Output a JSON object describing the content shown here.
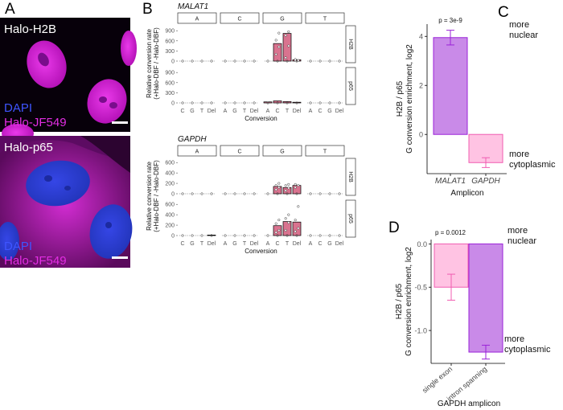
{
  "figure": {
    "panel_labels": [
      "A",
      "B",
      "C",
      "D"
    ],
    "micrographs": [
      {
        "title": "Halo-H2B",
        "legend": [
          "DAPI",
          "Halo-JF549"
        ]
      },
      {
        "title": "Halo-p65",
        "legend": [
          "DAPI",
          "Halo-JF549"
        ]
      }
    ]
  },
  "colors": {
    "nucleus_blue": "#2a3fd6",
    "magenta": "#e021e0",
    "bar_pink": "#d9738f",
    "purple_fill": "#c98ae8",
    "purple_edge": "#9a22d8",
    "pink_fill": "#ffc3e3",
    "pink_edge": "#f05cb2"
  },
  "chart_data": [
    {
      "type": "bar",
      "title": "MALAT1",
      "ylabel_lines": [
        "Relative conversion rate",
        "(+Halo-DBF / -Halo-DBF)"
      ],
      "xlabel": "Conversion",
      "facets_x": [
        "A",
        "C",
        "G",
        "T"
      ],
      "facets_y": [
        "H2B",
        "p65"
      ],
      "categories": {
        "A": [
          "C",
          "G",
          "T",
          "Del"
        ],
        "C": [
          "A",
          "G",
          "T",
          "Del"
        ],
        "G": [
          "A",
          "C",
          "T",
          "Del"
        ],
        "T": [
          "A",
          "C",
          "G",
          "Del"
        ]
      },
      "ylim": [
        0,
        1000
      ],
      "yticks": [
        0,
        300,
        600,
        900
      ],
      "values": {
        "H2B": {
          "A": [
            0,
            0,
            0,
            0
          ],
          "C": [
            0,
            0,
            0,
            0
          ],
          "G": [
            0,
            520,
            820,
            40
          ],
          "T": [
            0,
            0,
            0,
            0
          ]
        },
        "p65": {
          "A": [
            0,
            0,
            0,
            0
          ],
          "C": [
            0,
            0,
            0,
            0
          ],
          "G": [
            30,
            60,
            40,
            20
          ],
          "T": [
            0,
            0,
            0,
            0
          ]
        }
      },
      "points": {
        "H2B": {
          "G": [
            [],
            [
              200,
              420,
              620,
              830
            ],
            [
              100,
              450,
              760,
              870
            ],
            [
              10,
              20,
              50
            ]
          ]
        }
      }
    },
    {
      "type": "bar",
      "title": "GAPDH",
      "ylabel_lines": [
        "Relative conversion rate",
        "(+Halo-DBF / -Halo-DBF)"
      ],
      "xlabel": "Conversion",
      "facets_x": [
        "A",
        "C",
        "G",
        "T"
      ],
      "facets_y": [
        "H2B",
        "p65"
      ],
      "categories": {
        "A": [
          "C",
          "G",
          "T",
          "Del"
        ],
        "C": [
          "A",
          "G",
          "T",
          "Del"
        ],
        "G": [
          "A",
          "C",
          "T",
          "Del"
        ],
        "T": [
          "A",
          "C",
          "G",
          "Del"
        ]
      },
      "ylim": [
        0,
        650
      ],
      "yticks": [
        0,
        200,
        400,
        600
      ],
      "values": {
        "H2B": {
          "A": [
            0,
            0,
            0,
            0
          ],
          "C": [
            0,
            0,
            0,
            0
          ],
          "G": [
            0,
            140,
            120,
            160
          ],
          "T": [
            0,
            0,
            0,
            0
          ]
        },
        "p65": {
          "A": [
            0,
            0,
            0,
            10
          ],
          "C": [
            0,
            0,
            0,
            0
          ],
          "G": [
            0,
            190,
            270,
            260
          ],
          "T": [
            0,
            0,
            0,
            0
          ]
        }
      },
      "points": {
        "H2B": {
          "G": [
            [],
            [
              80,
              120,
              160,
              200
            ],
            [
              60,
              110,
              160,
              180
            ],
            [
              120,
              160,
              180
            ]
          ]
        },
        "p65": {
          "G": [
            [],
            [
              60,
              100,
              230,
              300
            ],
            [
              100,
              250,
              330,
              400
            ],
            [
              80,
              140,
              300,
              560
            ]
          ]
        }
      }
    },
    {
      "type": "bar",
      "xlabel": "Amplicon",
      "ylabel_lines": [
        "H2B / p65",
        "G conversion enrichment, log2"
      ],
      "categories": [
        "MALAT1",
        "GAPDH"
      ],
      "values": [
        3.95,
        -1.15
      ],
      "errors": [
        0.3,
        0.2
      ],
      "ylim": [
        -1.6,
        4.5
      ],
      "yticks": [
        0,
        2,
        4
      ],
      "pvalue": "p = 3e-9",
      "annotations": {
        "top": [
          "more",
          "nuclear"
        ],
        "bottom": [
          "more",
          "cytoplasmic"
        ]
      }
    },
    {
      "type": "bar",
      "xlabel": "GAPDH amplicon",
      "ylabel_lines": [
        "H2B / p65",
        "G conversion enrichment, log2"
      ],
      "categories": [
        "single exon",
        "intron spanning"
      ],
      "values": [
        -0.5,
        -1.25
      ],
      "errors": [
        0.15,
        0.08
      ],
      "ylim": [
        -1.38,
        0.05
      ],
      "yticks": [
        0.0,
        -0.5,
        -1.0
      ],
      "pvalue": "p = 0.0012",
      "annotations": {
        "top": [
          "more",
          "nuclear"
        ],
        "bottom": [
          "more",
          "cytoplasmic"
        ]
      }
    }
  ]
}
